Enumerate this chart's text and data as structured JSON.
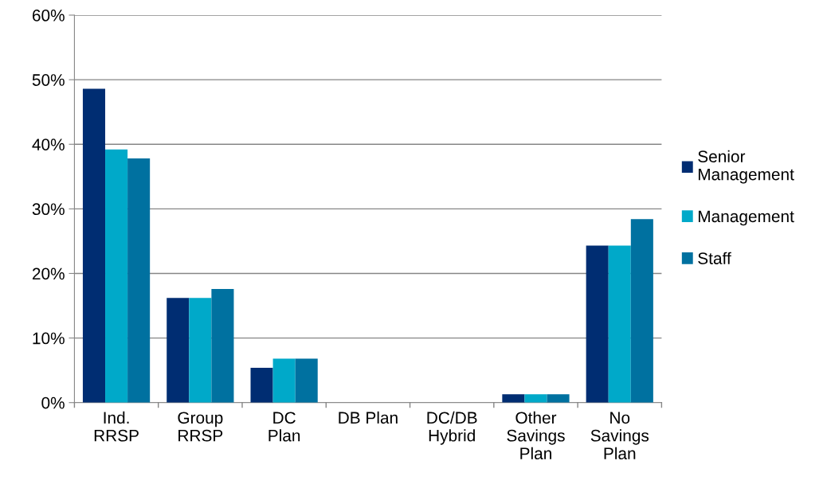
{
  "chart_data": {
    "type": "bar",
    "categories": [
      "Ind.\nRRSP",
      "Group\nRRSP",
      "DC\nPlan",
      "DB Plan",
      "DC/DB\nHybrid",
      "Other\nSavings\nPlan",
      "No\nSavings\nPlan"
    ],
    "series": [
      {
        "name": "Senior\nManagement",
        "color": "#002d72",
        "values": [
          48.6,
          16.2,
          5.4,
          0,
          0,
          1.3,
          24.3
        ]
      },
      {
        "name": "Management",
        "color": "#00a9c9",
        "values": [
          39.2,
          16.2,
          6.8,
          0,
          0,
          1.3,
          24.3
        ]
      },
      {
        "name": "Staff",
        "color": "#0071a0",
        "values": [
          37.8,
          17.6,
          6.8,
          0,
          0,
          1.3,
          28.4
        ]
      }
    ],
    "ylim": [
      0,
      60
    ],
    "yticks": [
      {
        "value": 0,
        "label": "0%"
      },
      {
        "value": 10,
        "label": "10%"
      },
      {
        "value": 20,
        "label": "20%"
      },
      {
        "value": 30,
        "label": "30%"
      },
      {
        "value": 40,
        "label": "40%"
      },
      {
        "value": 50,
        "label": "50%"
      },
      {
        "value": 60,
        "label": "60%"
      }
    ],
    "grid": "y",
    "legend": "right"
  }
}
